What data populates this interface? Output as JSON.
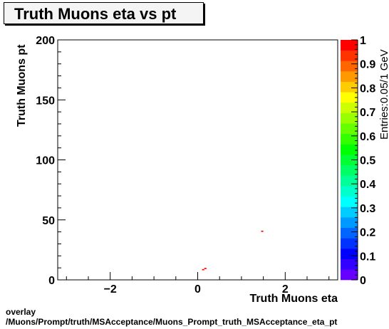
{
  "footer": {
    "line1": "overlay",
    "line2": "/Muons/Prompt/truth/MSAcceptance/Muons_Prompt_truth_MSAcceptance_eta_pt"
  },
  "chart_data": {
    "type": "heatmap",
    "title": "Truth Muons eta vs pt",
    "xlabel": "Truth Muons eta",
    "ylabel": "Truth Muons pt",
    "zlabel": "Entries:0.05/1 GeV",
    "xlim": [
      -3.2,
      3.2
    ],
    "ylim": [
      0,
      200
    ],
    "zlim": [
      0,
      1
    ],
    "x_ticks": [
      -2,
      0,
      2
    ],
    "x_tick_labels": [
      "−2",
      "0",
      "2"
    ],
    "y_ticks": [
      0,
      50,
      100,
      150,
      200
    ],
    "y_tick_labels": [
      "0",
      "50",
      "100",
      "150",
      "200"
    ],
    "z_ticks": [
      0,
      0.1,
      0.2,
      0.3,
      0.4,
      0.5,
      0.6,
      0.7,
      0.8,
      0.9,
      1
    ],
    "z_tick_labels": [
      "0",
      "0.1",
      "0.2",
      "0.3",
      "0.4",
      "0.5",
      "0.6",
      "0.7",
      "0.8",
      "0.9",
      "1"
    ],
    "bin_width_x": 0.05,
    "bin_width_y": 1,
    "cells": [
      {
        "x": 1.475,
        "y": 40.5,
        "z": 1
      },
      {
        "x": 0.175,
        "y": 9.5,
        "z": 1
      },
      {
        "x": 0.125,
        "y": 8.5,
        "z": 1
      }
    ],
    "palette": [
      "#6600ff",
      "#3300ff",
      "#0000ff",
      "#0033ff",
      "#0066ff",
      "#0099ff",
      "#00ccff",
      "#00ffff",
      "#00ffcc",
      "#00ff99",
      "#00ff66",
      "#00ff33",
      "#00ff00",
      "#33ff00",
      "#66ff00",
      "#99ff00",
      "#ccff00",
      "#ffff00",
      "#ffcc00",
      "#ff9900",
      "#ff6600",
      "#ff3300",
      "#ff0000"
    ],
    "grid": false,
    "legend": "none"
  }
}
